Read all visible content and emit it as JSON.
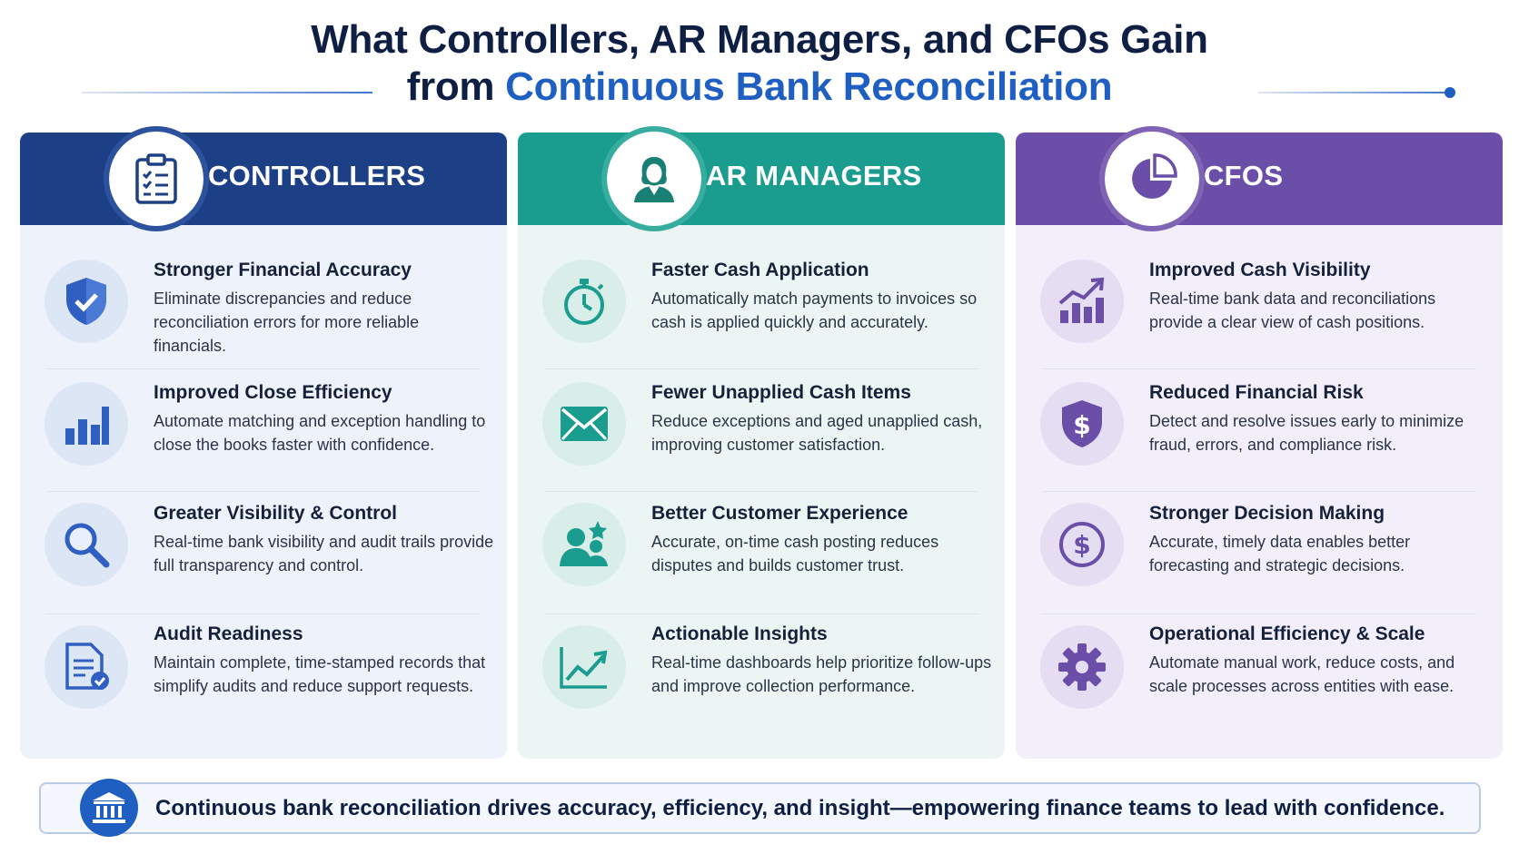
{
  "title": {
    "line1": "What Controllers, AR Managers, and CFOs Gain",
    "line2_prefix": "from ",
    "line2_accent": "Continuous Bank Reconciliation"
  },
  "colors": {
    "navy": "#1d3f86",
    "teal": "#1a9c8f",
    "purple": "#6a4ea8",
    "accent_blue": "#1f5fc2"
  },
  "columns": [
    {
      "label": "CONTROLLERS",
      "header_icon": "clipboard-checklist-icon",
      "items": [
        {
          "icon": "shield-check-icon",
          "title": "Stronger Financial Accuracy",
          "desc": "Eliminate discrepancies and reduce reconciliation errors for more reliable financials."
        },
        {
          "icon": "bar-chart-icon",
          "title": "Improved Close Efficiency",
          "desc": "Automate matching and exception handling to close the books faster with confidence."
        },
        {
          "icon": "magnifier-icon",
          "title": "Greater Visibility & Control",
          "desc": "Real-time bank visibility and audit trails provide full transparency and control."
        },
        {
          "icon": "document-check-icon",
          "title": "Audit Readiness",
          "desc": "Maintain complete, time-stamped records that simplify audits and reduce support requests."
        }
      ]
    },
    {
      "label": "AR MANAGERS",
      "header_icon": "person-icon",
      "items": [
        {
          "icon": "stopwatch-icon",
          "title": "Faster Cash Application",
          "desc": "Automatically match payments to invoices so cash is applied quickly and accurately."
        },
        {
          "icon": "envelope-icon",
          "title": "Fewer Unapplied Cash Items",
          "desc": "Reduce exceptions and aged unapplied cash, improving customer satisfaction."
        },
        {
          "icon": "customer-star-icon",
          "title": "Better Customer Experience",
          "desc": "Accurate, on-time cash posting reduces disputes and builds customer trust."
        },
        {
          "icon": "trend-up-icon",
          "title": "Actionable Insights",
          "desc": "Real-time dashboards help prioritize follow-ups and improve collection performance."
        }
      ]
    },
    {
      "label": "CFOS",
      "header_icon": "pie-chart-icon",
      "items": [
        {
          "icon": "growth-chart-icon",
          "title": "Improved Cash Visibility",
          "desc": "Real-time bank data and reconciliations provide a clear view of cash positions."
        },
        {
          "icon": "shield-dollar-icon",
          "title": "Reduced Financial Risk",
          "desc": "Detect and resolve issues early to minimize fraud, errors, and compliance risk."
        },
        {
          "icon": "dollar-circle-icon",
          "title": "Stronger Decision Making",
          "desc": "Accurate, timely data enables better forecasting and strategic decisions."
        },
        {
          "icon": "gear-icon",
          "title": "Operational Efficiency & Scale",
          "desc": "Automate manual work, reduce costs, and scale processes across entities with ease."
        }
      ]
    }
  ],
  "footer": {
    "icon": "bank-icon",
    "text": "Continuous bank reconciliation drives accuracy, efficiency, and insight—empowering finance teams to lead with confidence."
  }
}
